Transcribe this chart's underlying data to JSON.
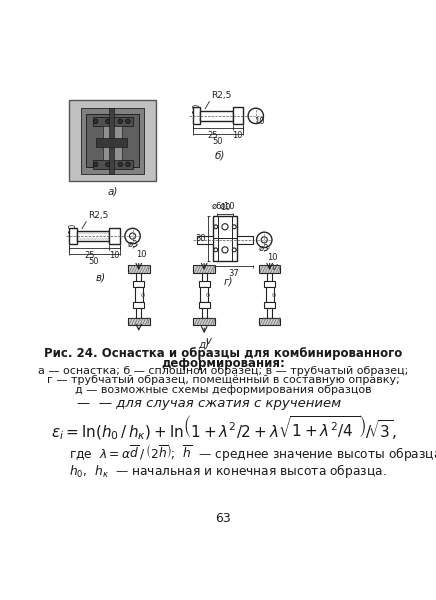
{
  "bg_color": "#f5f5f0",
  "text_color": "#1a1a1a",
  "page_color": "#fafaf8",
  "fig_caption_bold": "Рис. 24. Оснастка и образцы для комбинированного",
  "fig_caption_bold2": "деформирования:",
  "fig_caption_normal": "а — оснастка; б — сплошной образец; в — трубчатый образец;",
  "fig_caption_normal2": "г — трубчатый образец, помещённый в составную оправку;",
  "fig_caption_normal3": "д — возможные схемы деформирования образцов",
  "formula_intro": "— для случая сжатия с кручением",
  "page_num": "63",
  "font_size_caption": 8.5,
  "font_size_formula": 9.5,
  "font_size_text": 8.8,
  "font_size_page": 9.0
}
